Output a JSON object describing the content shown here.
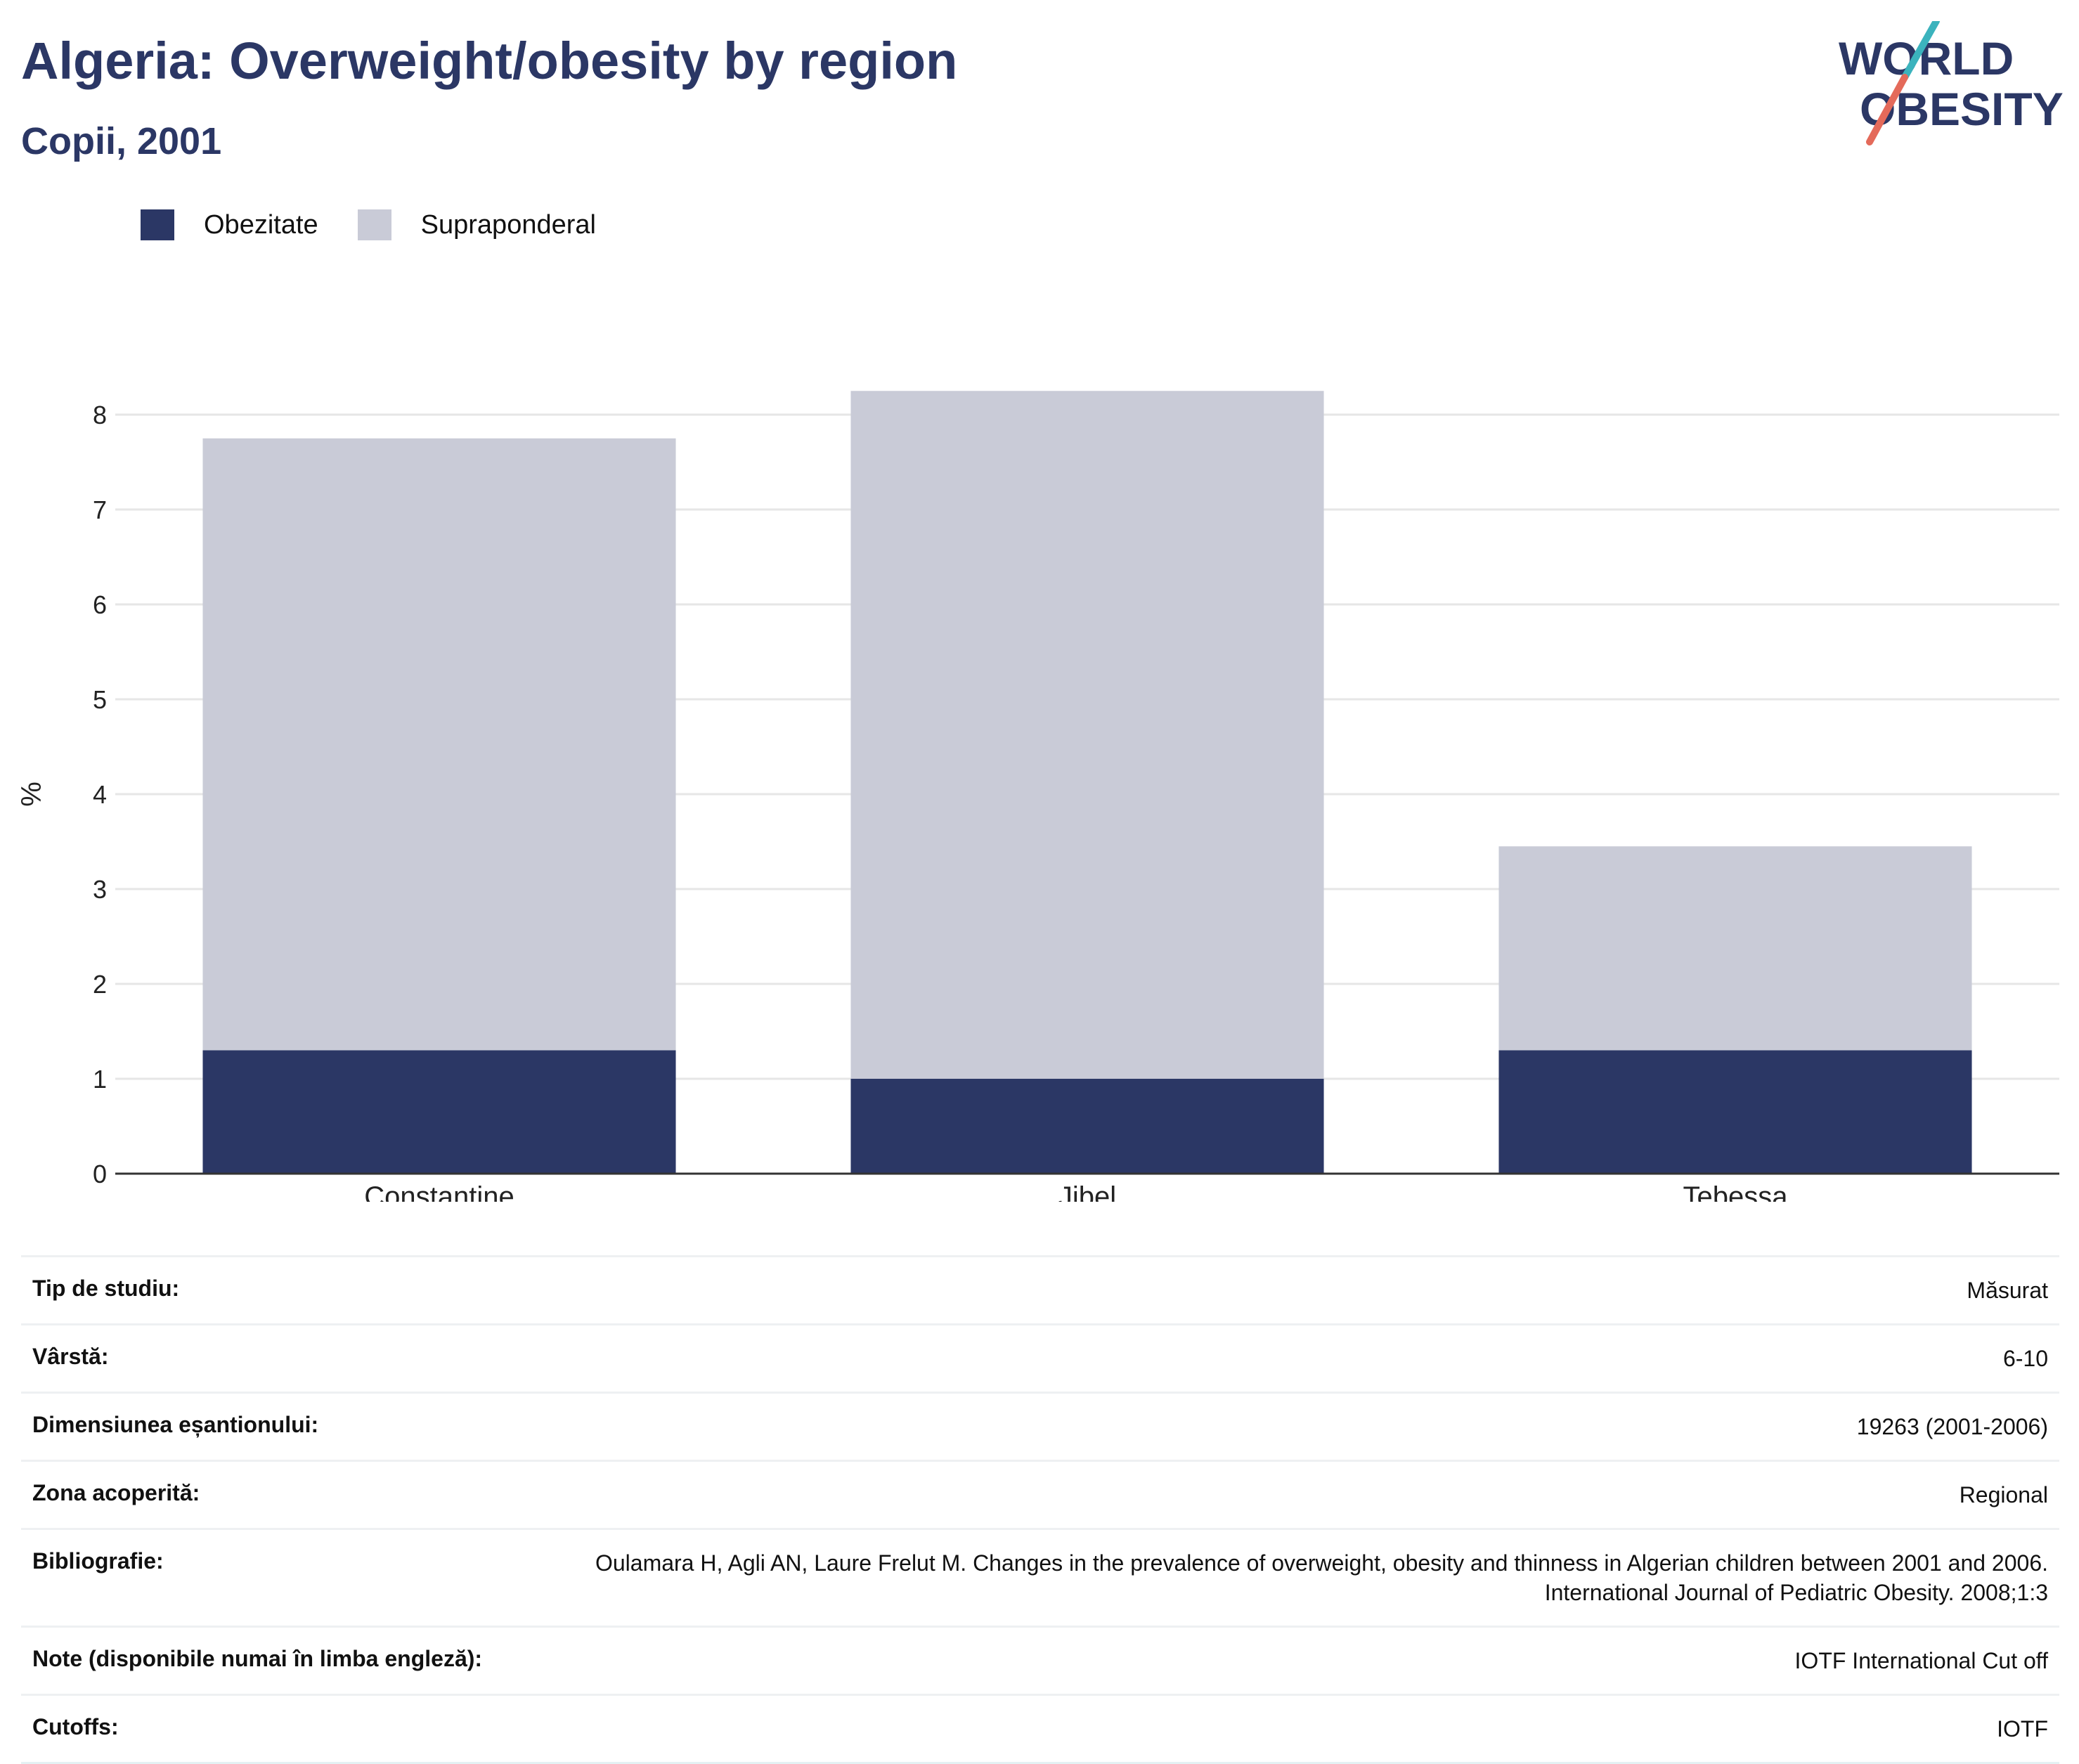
{
  "header": {
    "title": "Algeria: Overweight/obesity by region",
    "subtitle": "Copii, 2001"
  },
  "logo": {
    "line1": "WORLD",
    "line2": "OBESITY"
  },
  "colors": {
    "obesity": "#2b3765",
    "overweight": "#c9cbd7",
    "title": "#2b3765",
    "gridline": "#e6e6e6",
    "axis": "#333333"
  },
  "legend": [
    {
      "label": "Obezitate",
      "color": "#2b3765"
    },
    {
      "label": "Supraponderal",
      "color": "#c9cbd7"
    }
  ],
  "chart_data": {
    "type": "bar",
    "stacked": true,
    "categories": [
      "Constantine",
      "Jibel",
      "Tebessa"
    ],
    "series": [
      {
        "name": "Obezitate",
        "values": [
          1.3,
          1.0,
          1.3
        ]
      },
      {
        "name": "Supraponderal",
        "values": [
          6.45,
          7.25,
          2.15
        ]
      }
    ],
    "ylabel": "%",
    "ylim": [
      0,
      8.7
    ],
    "yticks": [
      0,
      1,
      2,
      3,
      4,
      5,
      6,
      7,
      8
    ],
    "grid": true,
    "legend_position": "top-left"
  },
  "info": [
    {
      "key": "Tip de studiu:",
      "value": "Măsurat"
    },
    {
      "key": "Vârstă:",
      "value": "6-10"
    },
    {
      "key": "Dimensiunea eșantionului:",
      "value": "19263 (2001-2006)"
    },
    {
      "key": "Zona acoperită:",
      "value": "Regional"
    },
    {
      "key": "Bibliografie:",
      "value": "Oulamara H, Agli AN, Laure Frelut M. Changes in the prevalence of overweight, obesity and thinness in Algerian children between 2001 and 2006. International Journal of Pediatric Obesity. 2008;1:3"
    },
    {
      "key": "Note (disponibile numai în limba engleză):",
      "value": "IOTF International Cut off"
    },
    {
      "key": "Cutoffs:",
      "value": "IOTF"
    }
  ]
}
